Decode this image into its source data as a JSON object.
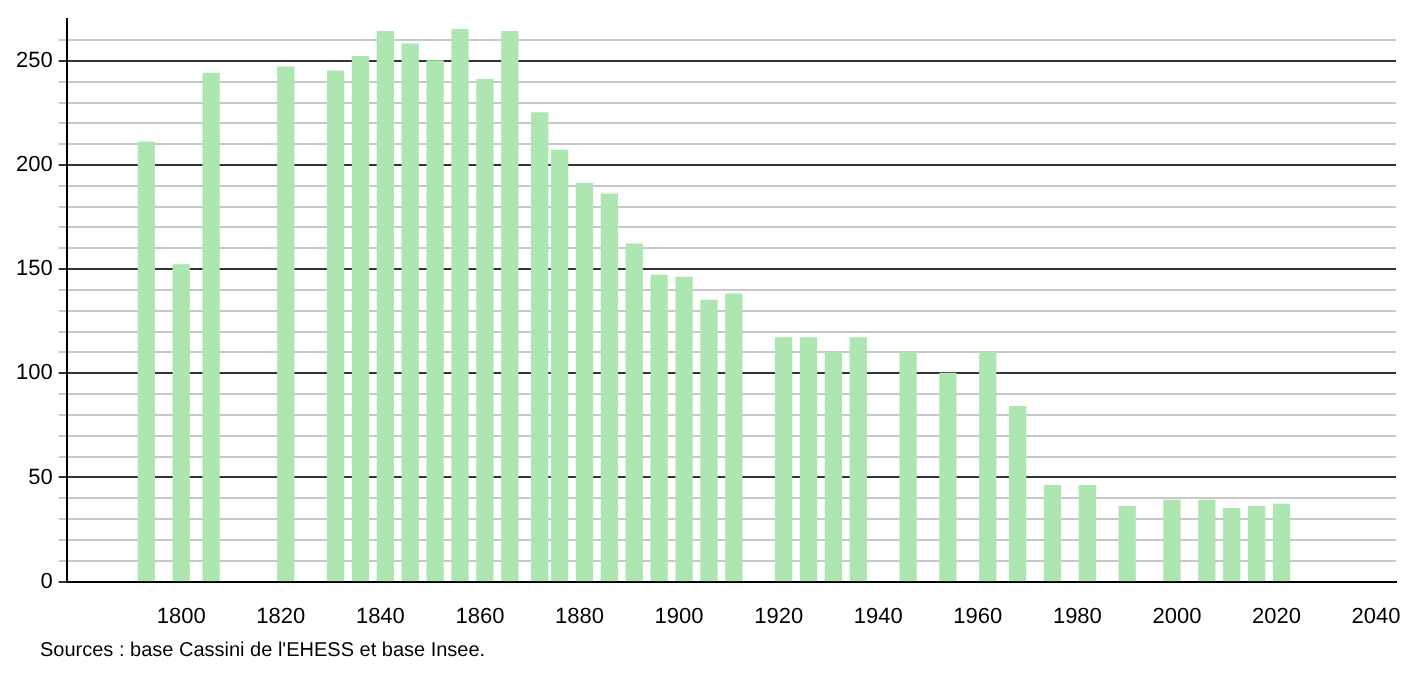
{
  "chart_data": {
    "type": "bar",
    "x": [
      1793,
      1800,
      1806,
      1821,
      1831,
      1836,
      1841,
      1846,
      1851,
      1856,
      1861,
      1866,
      1872,
      1876,
      1881,
      1886,
      1891,
      1896,
      1901,
      1906,
      1911,
      1921,
      1926,
      1931,
      1936,
      1946,
      1954,
      1962,
      1968,
      1975,
      1982,
      1990,
      1999,
      2006,
      2011,
      2016,
      2021
    ],
    "values": [
      211,
      152,
      244,
      247,
      245,
      252,
      264,
      258,
      250,
      265,
      241,
      264,
      225,
      207,
      191,
      186,
      162,
      147,
      146,
      135,
      138,
      117,
      117,
      110,
      117,
      110,
      100,
      110,
      84,
      46,
      46,
      36,
      39,
      39,
      35,
      36,
      37
    ],
    "color": "#aee6b1",
    "xlim": [
      1777,
      2044
    ],
    "xticks": [
      1800,
      1820,
      1840,
      1860,
      1880,
      1900,
      1920,
      1940,
      1960,
      1980,
      2000,
      2020,
      2040
    ],
    "ylim": [
      0,
      270
    ],
    "yticks": [
      0,
      {
        "value": 10,
        "label": null
      },
      {
        "value": 20,
        "label": null
      },
      {
        "value": 30,
        "label": null
      },
      {
        "value": 40,
        "label": null
      },
      50,
      {
        "value": 60,
        "label": null
      },
      {
        "value": 70,
        "label": null
      },
      {
        "value": 80,
        "label": null
      },
      {
        "value": 90,
        "label": null
      },
      100,
      {
        "value": 110,
        "label": null
      },
      {
        "value": 120,
        "label": null
      },
      {
        "value": 130,
        "label": null
      },
      {
        "value": 140,
        "label": null
      },
      150,
      {
        "value": 160,
        "label": null
      },
      {
        "value": 170,
        "label": null
      },
      {
        "value": 180,
        "label": null
      },
      {
        "value": 190,
        "label": null
      },
      200,
      {
        "value": 210,
        "label": null
      },
      {
        "value": 220,
        "label": null
      },
      {
        "value": 230,
        "label": null
      },
      {
        "value": 240,
        "label": null
      },
      250,
      {
        "value": 260,
        "label": null
      }
    ],
    "grid": "y",
    "annotations": [
      "Sources : base Cassini de l'EHESS et base Insee."
    ]
  }
}
